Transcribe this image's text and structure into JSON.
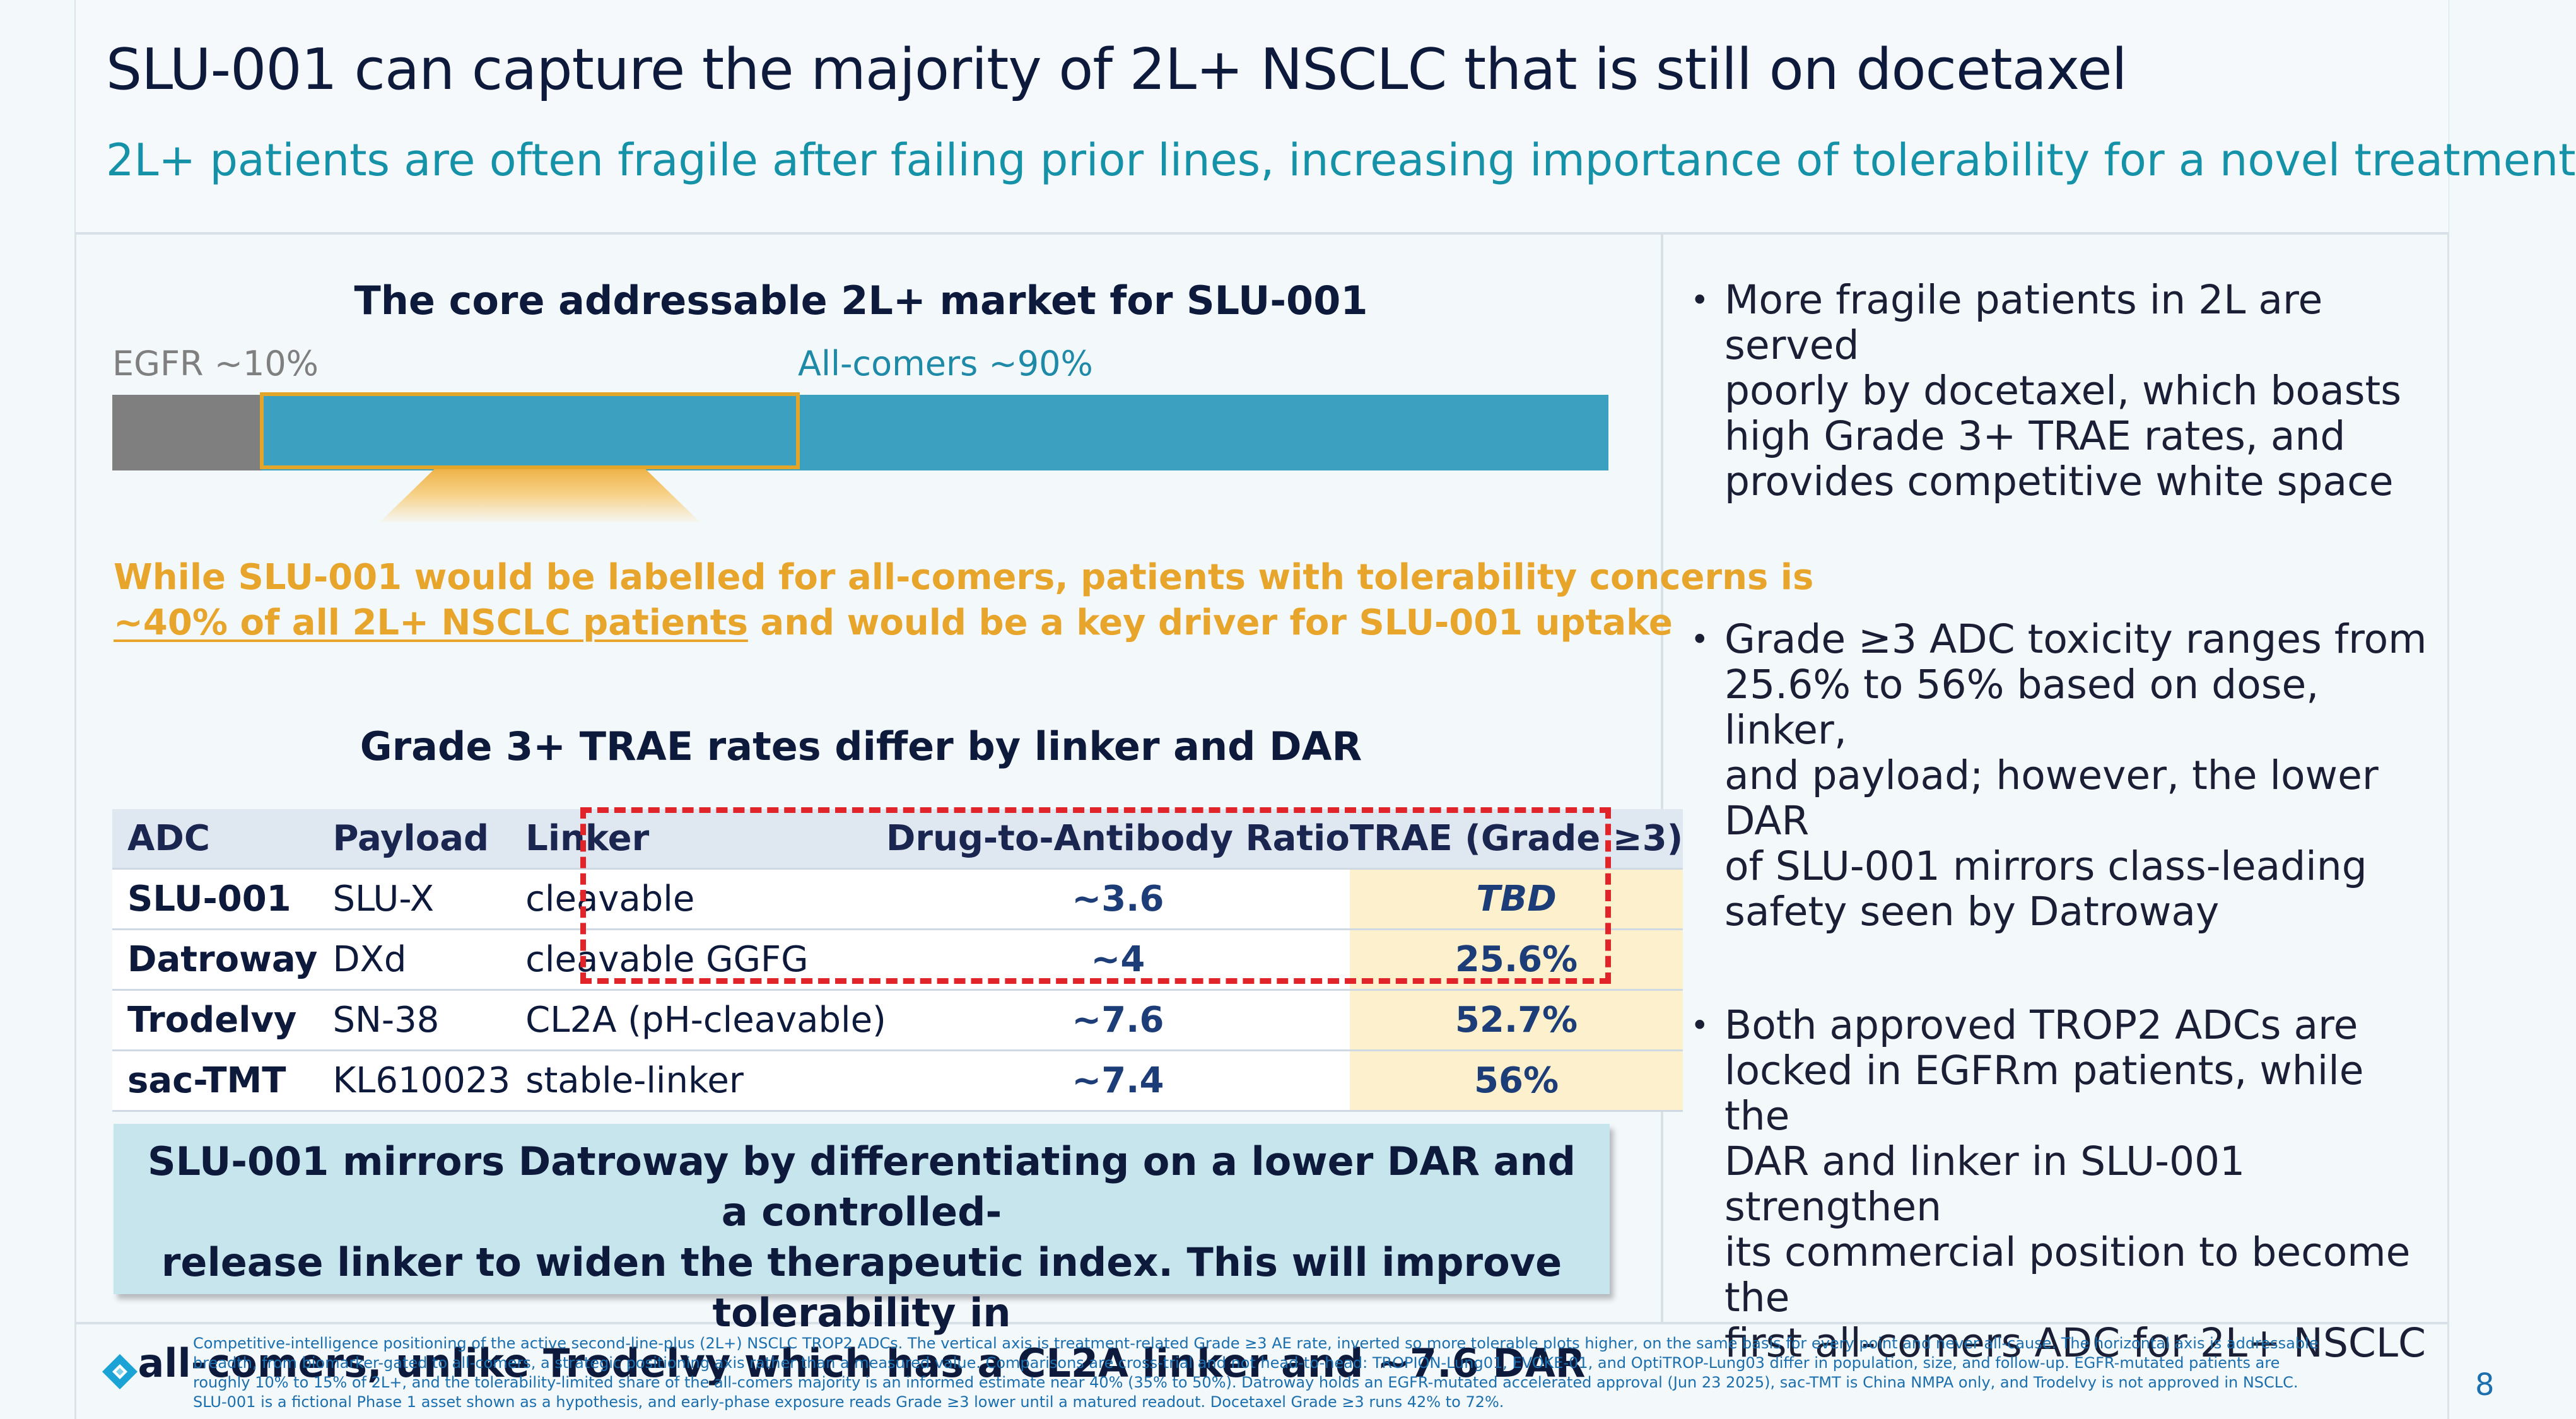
{
  "header": {
    "title": "SLU-001 can capture the majority of 2L+ NSCLC that is still on docetaxel",
    "subtitle": "2L+ patients are often fragile after failing prior lines, increasing importance of tolerability for a novel treatment"
  },
  "market": {
    "heading": "The core addressable 2L+ market for SLU-001",
    "segments": [
      {
        "label": "EGFR ~10%",
        "share": 10,
        "color": "#7f7f7f"
      },
      {
        "label": "All-comers ~90%",
        "share": 90,
        "color": "#3ca1c0"
      }
    ],
    "highlight_color": "#e2a62b",
    "callout_line1": "While SLU-001 would be labelled for all-comers, patients with tolerability concerns is",
    "callout_line2_underlined": "~40% of all 2L+ NSCLC patients",
    "callout_line2_rest": " and would be a key driver for SLU-001 uptake"
  },
  "trae_table": {
    "heading": "Grade 3+ TRAE rates differ by linker and DAR",
    "columns": [
      "ADC",
      "Payload",
      "Linker",
      "Drug-to-Antibody Ratio",
      "TRAE (Grade ≥3)"
    ],
    "rows": [
      {
        "adc": "SLU-001",
        "payload": "SLU-X",
        "linker": "cleavable",
        "dar": "~3.6",
        "trae": "TBD"
      },
      {
        "adc": "Datroway",
        "payload": "DXd",
        "linker": "cleavable GGFG",
        "dar": "~4",
        "trae": "25.6%"
      },
      {
        "adc": "Trodelvy",
        "payload": "SN-38",
        "linker": "CL2A (pH-cleavable)",
        "dar": "~7.6",
        "trae": "52.7%"
      },
      {
        "adc": "sac-TMT",
        "payload": "KL610023",
        "linker": "stable-linker",
        "dar": "~7.4",
        "trae": "56%"
      }
    ]
  },
  "summary": {
    "line1": "SLU-001 mirrors Datroway by differentiating on a lower DAR and a controlled-",
    "line2": "release linker to widen the therapeutic index. This will improve tolerability in",
    "line3": "all-comers, unlike Trodelvy which has a CL2A linker and ~7.6 DAR"
  },
  "bullets": [
    {
      "lines": [
        "More fragile patients in 2L are served",
        "poorly by docetaxel, which boasts",
        "high Grade 3+ TRAE rates, and",
        "provides competitive white space"
      ]
    },
    {
      "lines": [
        "Grade ≥3 ADC toxicity ranges from",
        "25.6% to 56% based on dose, linker,",
        "and payload; however, the lower DAR",
        "of SLU-001 mirrors class-leading",
        "safety seen by Datroway"
      ]
    },
    {
      "lines": [
        "Both approved TROP2 ADCs are",
        "locked in EGFRm patients, while the",
        "DAR and linker in SLU-001 strengthen",
        "its commercial position to become the",
        "first all-comers ADC for 2L+ NSCLC"
      ]
    }
  ],
  "footnote": {
    "lines": [
      "Competitive-intelligence positioning of the active second-line-plus (2L+) NSCLC TROP2 ADCs. The vertical axis is treatment-related Grade ≥3 AE rate, inverted so more tolerable plots higher, on the same basis for every point and never all-cause. The horizontal axis is addressable",
      "breadth, from biomarker-gated to all-comers, a strategic positioning axis rather than a measured value. Comparisons are cross-trial and not head-to-head: TROPION-Lung01, EVOKE-01, and OptiTROP-Lung03 differ in population, size, and follow-up. EGFR-mutated patients are",
      "roughly 10% to 15% of 2L+, and the tolerability-limited share of the all-comers majority is an informed estimate near 40% (35% to 50%). Datroway holds an EGFR-mutated accelerated approval (Jun 23 2025), sac-TMT is China NMPA only, and Trodelvy is not approved in NSCLC.",
      "SLU-001 is a fictional Phase 1 asset shown as a hypothesis, and early-phase exposure reads Grade ≥3 lower until a matured readout. Docetaxel Grade ≥3 runs 42% to 72%."
    ]
  },
  "page_number": "8"
}
